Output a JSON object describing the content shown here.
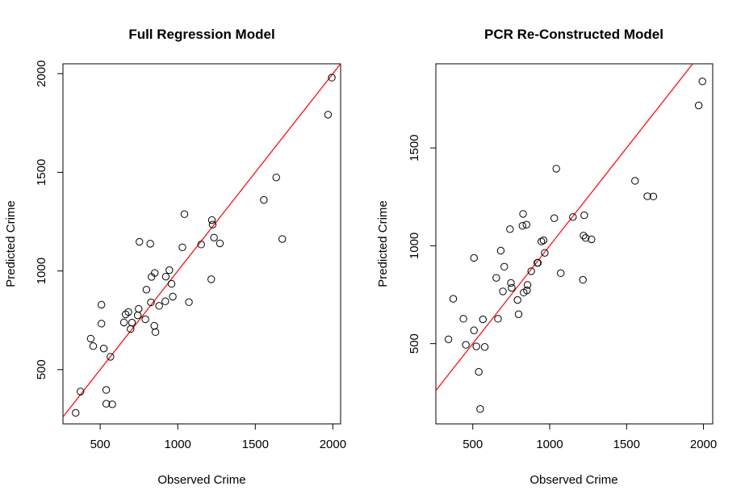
{
  "chart_data": [
    {
      "type": "scatter",
      "title": "Full Regression Model",
      "xlabel": "Observed Crime",
      "ylabel": "Predicted Crime",
      "xlim": [
        260,
        2050
      ],
      "ylim": [
        225,
        2050
      ],
      "xticks": [
        500,
        1000,
        1500,
        2000
      ],
      "yticks": [
        500,
        1000,
        1500,
        2000
      ],
      "reference_line": {
        "slope": 1,
        "intercept": 0,
        "color": "#ff0000"
      },
      "points": [
        [
          342,
          281
        ],
        [
          373,
          389
        ],
        [
          439,
          657
        ],
        [
          455,
          619
        ],
        [
          508,
          829
        ],
        [
          508,
          733
        ],
        [
          523,
          607
        ],
        [
          539,
          397
        ],
        [
          539,
          327
        ],
        [
          566,
          565
        ],
        [
          578,
          324
        ],
        [
          653,
          739
        ],
        [
          664,
          780
        ],
        [
          682,
          792
        ],
        [
          696,
          706
        ],
        [
          705,
          738
        ],
        [
          742,
          775
        ],
        [
          748,
          808
        ],
        [
          753,
          1148
        ],
        [
          791,
          755
        ],
        [
          798,
          905
        ],
        [
          823,
          1138
        ],
        [
          827,
          841
        ],
        [
          831,
          970
        ],
        [
          849,
          722
        ],
        [
          852,
          990
        ],
        [
          856,
          690
        ],
        [
          880,
          823
        ],
        [
          920,
          846
        ],
        [
          923,
          971
        ],
        [
          946,
          1004
        ],
        [
          960,
          935
        ],
        [
          968,
          870
        ],
        [
          1030,
          1120
        ],
        [
          1043,
          1288
        ],
        [
          1072,
          842
        ],
        [
          1151,
          1134
        ],
        [
          1216,
          958
        ],
        [
          1220,
          1258
        ],
        [
          1225,
          1235
        ],
        [
          1234,
          1169
        ],
        [
          1272,
          1140
        ],
        [
          1555,
          1360
        ],
        [
          1635,
          1474
        ],
        [
          1674,
          1162
        ],
        [
          1969,
          1792
        ],
        [
          1993,
          1980
        ]
      ]
    },
    {
      "type": "scatter",
      "title": "PCR Re-Constructed Model",
      "xlabel": "Observed Crime",
      "ylabel": "Predicted Crime",
      "xlim": [
        260,
        2060
      ],
      "ylim": [
        90,
        1930
      ],
      "xticks": [
        500,
        1000,
        1500,
        2000
      ],
      "yticks": [
        500,
        1000,
        1500
      ],
      "reference_line": {
        "slope": 1,
        "intercept": 0,
        "color": "#ff0000"
      },
      "points": [
        [
          342,
          522
        ],
        [
          373,
          729
        ],
        [
          439,
          627
        ],
        [
          455,
          494
        ],
        [
          508,
          938
        ],
        [
          508,
          568
        ],
        [
          523,
          486
        ],
        [
          539,
          356
        ],
        [
          548,
          166
        ],
        [
          566,
          624
        ],
        [
          578,
          483
        ],
        [
          653,
          836
        ],
        [
          664,
          627
        ],
        [
          682,
          975
        ],
        [
          696,
          767
        ],
        [
          705,
          893
        ],
        [
          742,
          1085
        ],
        [
          748,
          810
        ],
        [
          753,
          785
        ],
        [
          791,
          723
        ],
        [
          798,
          650
        ],
        [
          823,
          1102
        ],
        [
          827,
          1163
        ],
        [
          831,
          761
        ],
        [
          849,
          1108
        ],
        [
          852,
          772
        ],
        [
          856,
          800
        ],
        [
          880,
          870
        ],
        [
          920,
          913
        ],
        [
          923,
          913
        ],
        [
          946,
          1022
        ],
        [
          960,
          1028
        ],
        [
          968,
          964
        ],
        [
          1030,
          1141
        ],
        [
          1043,
          1394
        ],
        [
          1072,
          860
        ],
        [
          1151,
          1147
        ],
        [
          1216,
          826
        ],
        [
          1220,
          1052
        ],
        [
          1225,
          1156
        ],
        [
          1234,
          1040
        ],
        [
          1272,
          1033
        ],
        [
          1555,
          1332
        ],
        [
          1635,
          1253
        ],
        [
          1674,
          1252
        ],
        [
          1969,
          1717
        ],
        [
          1993,
          1840
        ]
      ]
    }
  ]
}
